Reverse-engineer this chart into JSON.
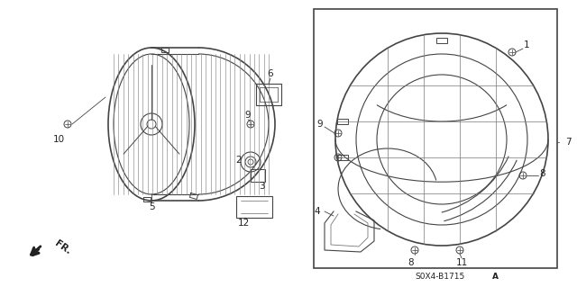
{
  "bg_color": "#ffffff",
  "fig_width": 6.4,
  "fig_height": 3.19,
  "part_name_text": "S0X4-B1715",
  "part_name_suffix": "A"
}
